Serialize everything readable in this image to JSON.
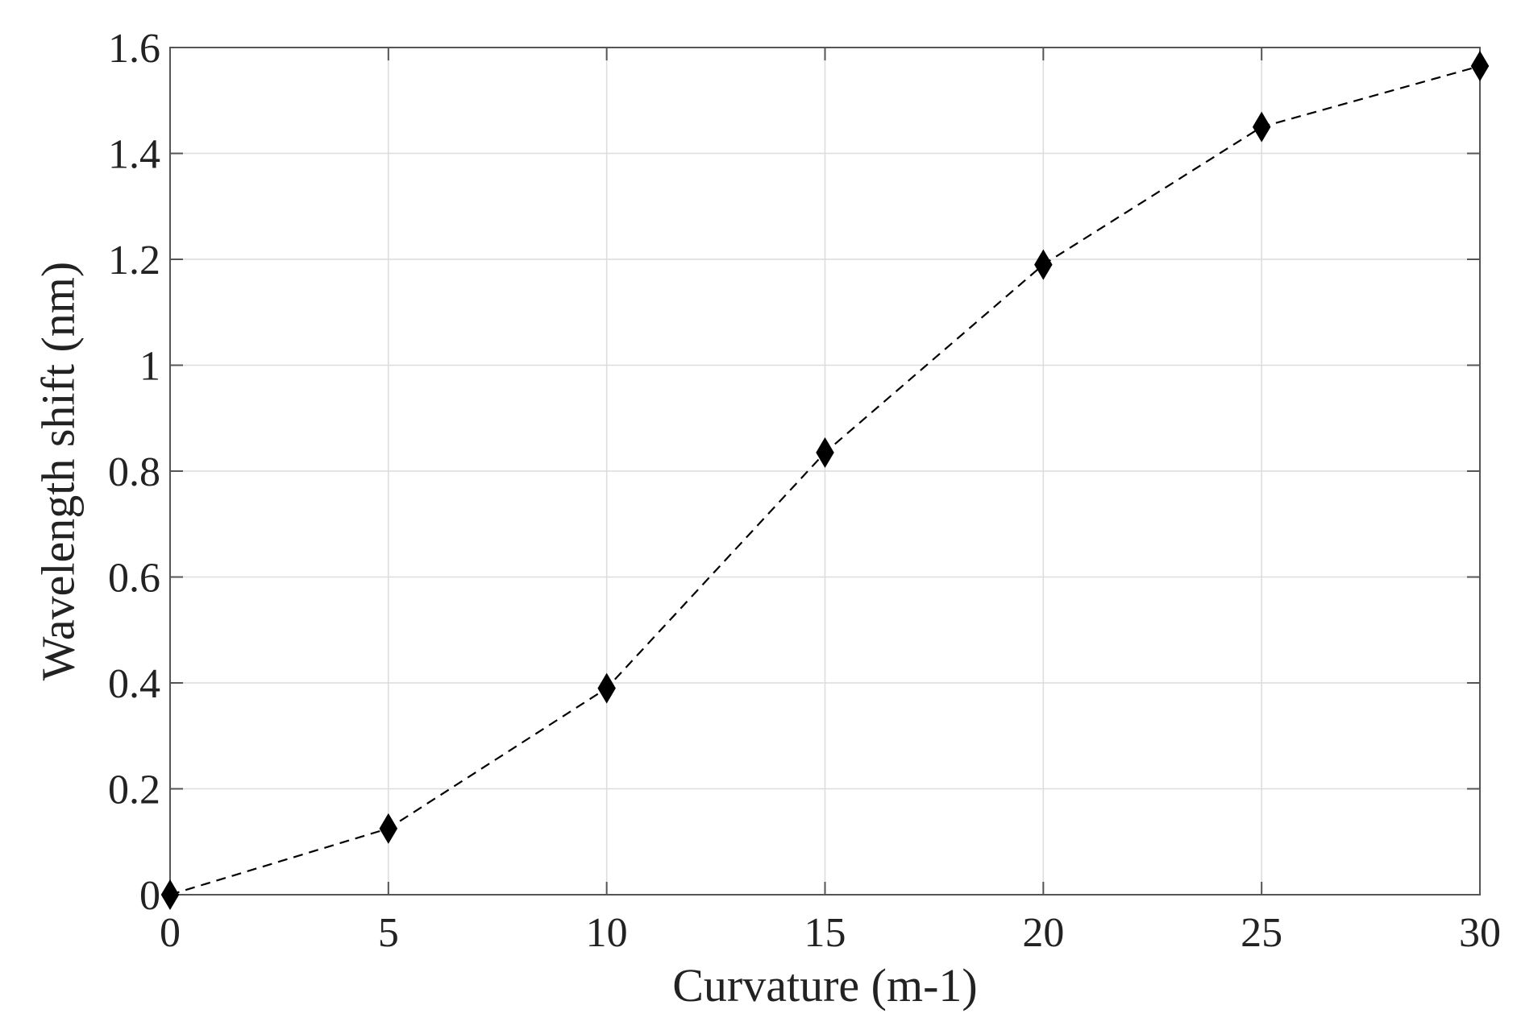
{
  "chart_data": {
    "type": "line",
    "title": "",
    "xlabel": "Curvature (m-1)",
    "ylabel": "Wavelength shift (nm)",
    "xlim": [
      0,
      30
    ],
    "ylim": [
      0,
      1.6
    ],
    "xticks": [
      "0",
      "5",
      "10",
      "15",
      "20",
      "25",
      "30"
    ],
    "yticks": [
      "0",
      "0.2",
      "0.4",
      "0.6",
      "0.8",
      "1",
      "1.2",
      "1.4",
      "1.6"
    ],
    "grid": true,
    "series": [
      {
        "x": [
          0,
          5,
          10,
          15,
          20,
          25,
          30
        ],
        "y": [
          0,
          0.125,
          0.39,
          0.835,
          1.19,
          1.45,
          1.565
        ],
        "line_style": "dashed",
        "marker": "diamond",
        "color": "#000000"
      }
    ]
  }
}
